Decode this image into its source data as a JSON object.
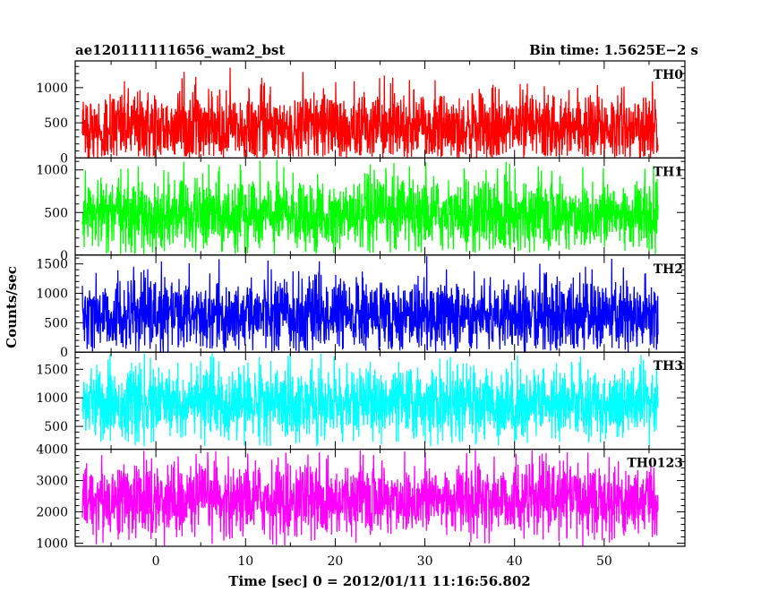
{
  "header": {
    "left_title": "ae120111111656_wam2_bst",
    "right_title": "Bin time: 1.5625E−2 s"
  },
  "chart_data": {
    "type": "line",
    "xlabel": "Time [sec] 0 = 2012/01/11 11:16:56.802",
    "ylabel": "Counts/sec",
    "xlim": [
      -9,
      59
    ],
    "x_ticks": [
      0,
      10,
      20,
      30,
      40,
      50
    ],
    "x_tick_labels": [
      "0",
      "10",
      "20",
      "30",
      "40",
      "50"
    ],
    "data_x_range": [
      -8.2,
      56
    ],
    "bin_time_s": 0.015625,
    "panels": [
      {
        "name": "TH0",
        "color": "#ff0000",
        "ylim": [
          0,
          1380
        ],
        "y_ticks": [
          0,
          500,
          1000
        ],
        "y_tick_labels": [
          "0",
          "500",
          "1000"
        ],
        "typical_mean": 430,
        "typical_range": [
          0,
          1380
        ]
      },
      {
        "name": "TH1",
        "color": "#00ff00",
        "ylim": [
          0,
          1140
        ],
        "y_ticks": [
          0,
          500,
          1000
        ],
        "y_tick_labels": [
          "0",
          "500",
          "1000"
        ],
        "typical_mean": 470,
        "typical_range": [
          0,
          1140
        ]
      },
      {
        "name": "TH2",
        "color": "#0000ff",
        "ylim": [
          0,
          1650
        ],
        "y_ticks": [
          0,
          500,
          1000,
          1500
        ],
        "y_tick_labels": [
          "0",
          "500",
          "1000",
          "1500"
        ],
        "typical_mean": 620,
        "typical_range": [
          0,
          1650
        ]
      },
      {
        "name": "TH3",
        "color": "#00ffff",
        "ylim": [
          100,
          1800
        ],
        "y_ticks": [
          500,
          1000,
          1500
        ],
        "y_tick_labels": [
          "500",
          "1000",
          "1500"
        ],
        "typical_mean": 900,
        "typical_range": [
          150,
          1800
        ]
      },
      {
        "name": "TH0123",
        "color": "#ff00ff",
        "ylim": [
          900,
          4000
        ],
        "y_ticks": [
          1000,
          2000,
          3000,
          4000
        ],
        "y_tick_labels": [
          "1000",
          "2000",
          "3000",
          "4000"
        ],
        "typical_mean": 2400,
        "typical_range": [
          900,
          4000
        ]
      }
    ]
  }
}
